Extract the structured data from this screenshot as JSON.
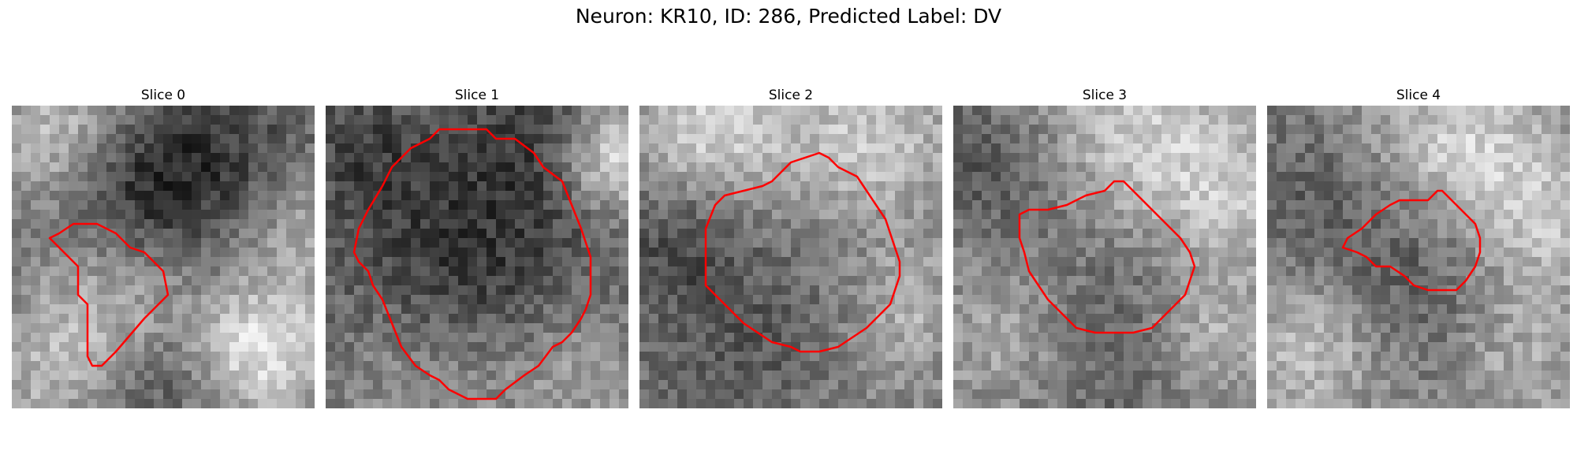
{
  "figure": {
    "title": "Neuron: KR10, ID: 286, Predicted Label: DV"
  },
  "contour_color": "#ff0000",
  "panels": [
    {
      "title": "Slice 0"
    },
    {
      "title": "Slice 1"
    },
    {
      "title": "Slice 2"
    },
    {
      "title": "Slice 3"
    },
    {
      "title": "Slice 4"
    }
  ]
}
